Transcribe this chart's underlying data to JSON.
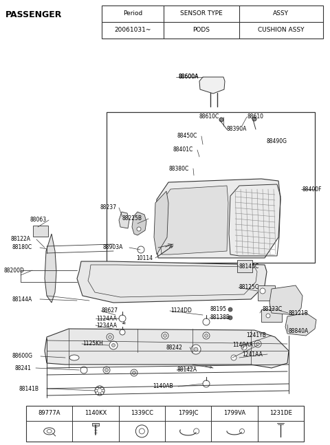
{
  "title": "PASSENGER",
  "bg_color": "#ffffff",
  "table_header": [
    "Period",
    "SENSOR TYPE",
    "ASSY"
  ],
  "table_row": [
    "20061031~",
    "PODS",
    "CUSHION ASSY"
  ],
  "bottom_table_labels": [
    "89777A",
    "1140KX",
    "1339CC",
    "1799JC",
    "1799VA",
    "1231DE"
  ],
  "line_color": "#333333",
  "text_color": "#000000",
  "font_size_title": 9,
  "font_size_labels": 5.5,
  "font_size_table": 6.5,
  "fig_width": 4.8,
  "fig_height": 6.47,
  "dpi": 100
}
